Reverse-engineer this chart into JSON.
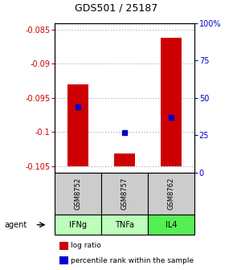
{
  "title": "GDS501 / 25187",
  "samples": [
    "GSM8752",
    "GSM8757",
    "GSM8762"
  ],
  "agents": [
    "IFNg",
    "TNFa",
    "IL4"
  ],
  "log_ratios": [
    -0.093,
    -0.1032,
    -0.0862
  ],
  "percentile_ranks": [
    44,
    27,
    37
  ],
  "bar_color": "#cc0000",
  "percentile_color": "#0000cc",
  "ylim_left": [
    -0.106,
    -0.084
  ],
  "yticks_left": [
    -0.085,
    -0.09,
    -0.095,
    -0.1,
    -0.105
  ],
  "yticks_right": [
    0,
    25,
    50,
    75,
    100
  ],
  "ylim_right": [
    0,
    100
  ],
  "bar_width": 0.45,
  "agent_colors": [
    "#bbffbb",
    "#bbffbb",
    "#55ee55"
  ],
  "sample_box_color": "#cccccc",
  "left_tick_color": "#cc0000",
  "right_tick_color": "#0000cc",
  "baseline": -0.105,
  "grid_color": "#888888",
  "bg_color": "#ffffff"
}
